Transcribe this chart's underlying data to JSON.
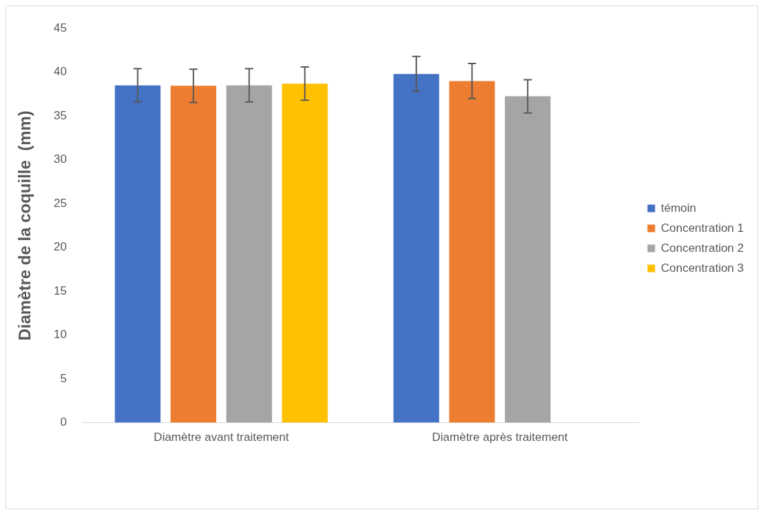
{
  "chart_data": {
    "type": "bar",
    "ylabel": "Diamètre de la coquille  (mm)",
    "categories": [
      "Diamètre avant traitement",
      "Diamètre après traitement"
    ],
    "series": [
      {
        "name": "témoin",
        "color": "#4472c4",
        "values": [
          38.5,
          39.8
        ],
        "errors": [
          1.9,
          2
        ]
      },
      {
        "name": "Concentration 1",
        "color": "#ed7d31",
        "values": [
          38.45,
          39
        ],
        "errors": [
          1.9,
          2
        ]
      },
      {
        "name": "Concentration 2",
        "color": "#a5a5a5",
        "values": [
          38.5,
          37.25
        ],
        "errors": [
          1.9,
          1.9
        ]
      },
      {
        "name": "Concentration 3",
        "color": "#ffc000",
        "values": [
          38.7,
          null
        ],
        "errors": [
          1.9,
          null
        ]
      }
    ],
    "ylim": [
      0,
      45
    ],
    "yticks": [
      0,
      5,
      10,
      15,
      20,
      25,
      30,
      35,
      40,
      45
    ],
    "grid": false,
    "legend": "right"
  }
}
